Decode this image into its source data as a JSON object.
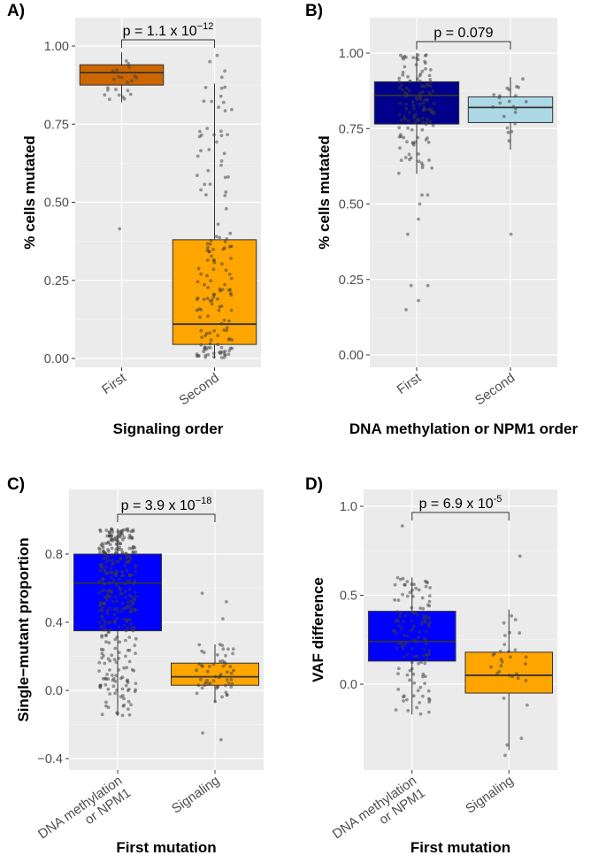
{
  "chart_data": [
    {
      "type": "box",
      "panel_label": "A)",
      "xlabel": "Signaling order",
      "ylabel": "% cells mutated",
      "categories": [
        "First",
        "Second"
      ],
      "ylim": [
        0.0,
        1.0
      ],
      "yticks": [
        "0.00",
        "0.25",
        "0.50",
        "0.75",
        "1.00"
      ],
      "ytick_values": [
        0,
        0.25,
        0.5,
        0.75,
        1.0
      ],
      "annotation": {
        "prefix": "p = 1.1 x 10",
        "exponent": "−12"
      },
      "boxes": [
        {
          "category": "First",
          "q1": 0.875,
          "median": 0.915,
          "q3": 0.94,
          "whisker_low": 0.82,
          "whisker_high": 0.98,
          "color": "#cc6600",
          "n_points": 22,
          "outliers": [
            0.415
          ]
        },
        {
          "category": "Second",
          "q1": 0.045,
          "median": 0.11,
          "q3": 0.38,
          "whisker_low": 0.0,
          "whisker_high": 0.88,
          "color": "#ffa500",
          "n_points": 150,
          "outliers": [
            0.9,
            0.92,
            0.95,
            0.97
          ]
        }
      ],
      "grid": true,
      "background": "#ebebeb"
    },
    {
      "type": "box",
      "panel_label": "B)",
      "xlabel": "DNA methylation or NPM1 order",
      "ylabel": "% cells mutated",
      "categories": [
        "First",
        "Second"
      ],
      "ylim": [
        0.0,
        1.0
      ],
      "yticks": [
        "0.00",
        "0.25",
        "0.50",
        "0.75",
        "1.00"
      ],
      "ytick_values": [
        0,
        0.25,
        0.5,
        0.75,
        1.0
      ],
      "annotation": {
        "prefix": "p = 0.079",
        "exponent": ""
      },
      "boxes": [
        {
          "category": "First",
          "q1": 0.765,
          "median": 0.86,
          "q3": 0.905,
          "whisker_low": 0.6,
          "whisker_high": 1.0,
          "color": "#00008b",
          "n_points": 130,
          "outliers": [
            0.15,
            0.18,
            0.23,
            0.23,
            0.4,
            0.45,
            0.5,
            0.53,
            0.53
          ]
        },
        {
          "category": "Second",
          "q1": 0.77,
          "median": 0.82,
          "q3": 0.855,
          "whisker_low": 0.68,
          "whisker_high": 0.92,
          "color": "#add8e6",
          "n_points": 22,
          "outliers": [
            0.4
          ]
        }
      ],
      "grid": true,
      "background": "#ebebeb"
    },
    {
      "type": "box",
      "panel_label": "C)",
      "xlabel": "First mutation",
      "ylabel": "Single−mutant proportion",
      "categories": [
        "DNA methylation\nor NPM1",
        "Signaling"
      ],
      "ylim": [
        -0.45,
        1.0
      ],
      "yticks": [
        "−0.4",
        "0.0",
        "0.4",
        "0.8"
      ],
      "ytick_values": [
        -0.4,
        0.0,
        0.4,
        0.8
      ],
      "annotation": {
        "prefix": "p = 3.9 x 10",
        "exponent": "−18"
      },
      "boxes": [
        {
          "category": "DNA methylation or NPM1",
          "q1": 0.35,
          "median": 0.63,
          "q3": 0.8,
          "whisker_low": -0.15,
          "whisker_high": 0.95,
          "color": "#0000ff",
          "n_points": 350,
          "outliers": []
        },
        {
          "category": "Signaling",
          "q1": 0.03,
          "median": 0.08,
          "q3": 0.16,
          "whisker_low": -0.07,
          "whisker_high": 0.27,
          "color": "#ffa500",
          "n_points": 55,
          "outliers": [
            -0.25,
            -0.29,
            0.42,
            0.52,
            0.57
          ]
        }
      ],
      "grid": true,
      "background": "#ebebeb"
    },
    {
      "type": "box",
      "panel_label": "D)",
      "xlabel": "First mutation",
      "ylabel": "VAF difference",
      "categories": [
        "DNA methylation\nor NPM1",
        "Signaling"
      ],
      "ylim": [
        -0.4,
        1.05
      ],
      "yticks": [
        "0.0",
        "0.5",
        "1.0"
      ],
      "ytick_values": [
        0.0,
        0.5,
        1.0
      ],
      "annotation": {
        "prefix": "p = 6.9 x 10",
        "exponent": "-5"
      },
      "boxes": [
        {
          "category": "DNA methylation or NPM1",
          "q1": 0.13,
          "median": 0.24,
          "q3": 0.41,
          "whisker_low": -0.17,
          "whisker_high": 0.6,
          "color": "#0000ff",
          "n_points": 130,
          "outliers": [
            0.89
          ]
        },
        {
          "category": "Signaling",
          "q1": -0.05,
          "median": 0.05,
          "q3": 0.18,
          "whisker_low": -0.37,
          "whisker_high": 0.42,
          "color": "#ffa500",
          "n_points": 30,
          "outliers": [
            0.72,
            -0.4
          ]
        }
      ],
      "grid": true,
      "background": "#ebebeb"
    }
  ]
}
